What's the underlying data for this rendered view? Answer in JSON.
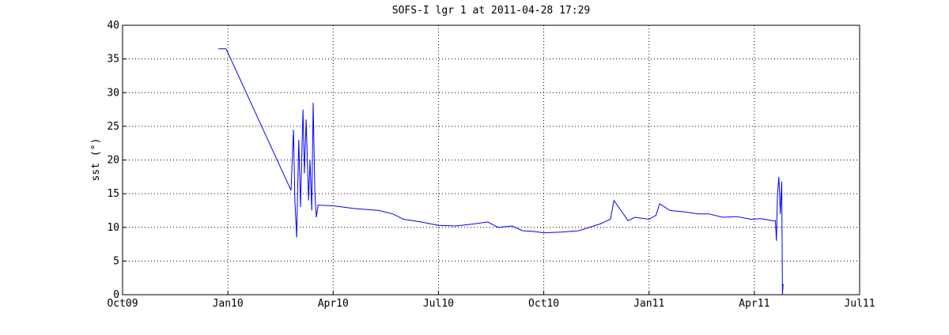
{
  "chart_data": {
    "type": "line",
    "title": "SOFS-I lgr 1 at 2011-04-28 17:29",
    "ylabel": "sst (°)",
    "xlim": [
      0,
      21
    ],
    "xticks": [
      {
        "value": 0,
        "label": "Oct09"
      },
      {
        "value": 3,
        "label": "Jan10"
      },
      {
        "value": 6,
        "label": "Apr10"
      },
      {
        "value": 9,
        "label": "Jul10"
      },
      {
        "value": 12,
        "label": "Oct10"
      },
      {
        "value": 15,
        "label": "Jan11"
      },
      {
        "value": 18,
        "label": "Apr11"
      },
      {
        "value": 21,
        "label": "Jul11"
      }
    ],
    "ylim": [
      0,
      40
    ],
    "yticks": [
      0,
      5,
      10,
      15,
      20,
      25,
      30,
      35,
      40
    ],
    "grid": true,
    "series": [
      {
        "name": "sst",
        "color": "#0000ff",
        "x": [
          2.73,
          2.95,
          4.8,
          4.87,
          4.91,
          4.96,
          5.02,
          5.07,
          5.14,
          5.18,
          5.23,
          5.3,
          5.34,
          5.39,
          5.43,
          5.48,
          5.52,
          5.57,
          6.0,
          6.6,
          7.3,
          7.7,
          8.0,
          8.5,
          9.0,
          9.5,
          10.0,
          10.4,
          10.7,
          11.1,
          11.4,
          11.7,
          12.0,
          12.5,
          13.0,
          13.6,
          13.9,
          14.0,
          14.2,
          14.4,
          14.6,
          15.0,
          15.2,
          15.3,
          15.6,
          16.0,
          16.4,
          16.7,
          17.1,
          17.5,
          17.9,
          18.2,
          18.5,
          18.6,
          18.63,
          18.66,
          18.7,
          18.74,
          18.78,
          18.8,
          18.82,
          18.84
        ],
        "values": [
          36.5,
          36.5,
          15.5,
          24.5,
          14,
          8.5,
          23,
          13,
          27.5,
          18,
          26,
          14,
          20,
          12.5,
          28.5,
          15,
          11.5,
          13.3,
          13.2,
          12.8,
          12.5,
          12.0,
          11.2,
          10.8,
          10.3,
          10.2,
          10.5,
          10.8,
          10.0,
          10.2,
          9.5,
          9.4,
          9.2,
          9.3,
          9.5,
          10.5,
          11.2,
          14.0,
          12.5,
          11.0,
          11.5,
          11.2,
          11.8,
          13.5,
          12.5,
          12.3,
          12.0,
          12.0,
          11.5,
          11.6,
          11.2,
          11.3,
          11.0,
          11.0,
          8.0,
          15.0,
          17.5,
          12.0,
          16.8,
          0,
          1.5,
          1.5
        ]
      }
    ]
  }
}
